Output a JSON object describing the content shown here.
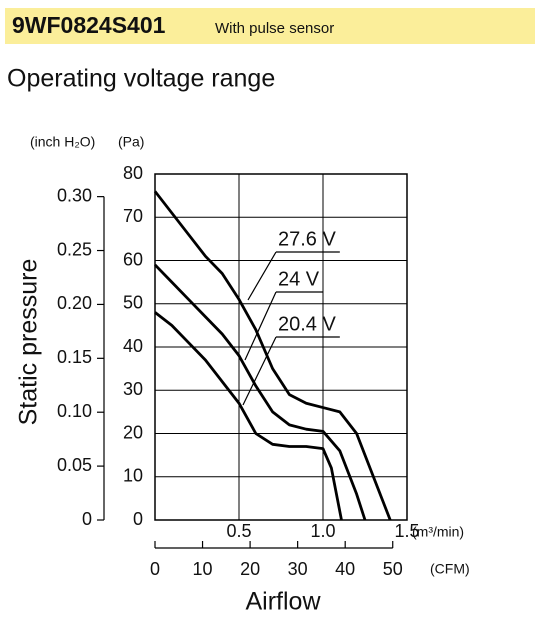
{
  "header": {
    "model": "9WF0824S401",
    "note": "With pulse sensor"
  },
  "chart_data": {
    "type": "line",
    "title": "Operating voltage range",
    "x_label": "Airflow",
    "y_label": "Static pressure",
    "x_unit": "(m³/min)",
    "x2_unit": "(CFM)",
    "y_unit": "(Pa)",
    "y2_unit": "(inch H₂O)",
    "xlim": [
      0,
      1.5
    ],
    "xticks": [
      0.5,
      {
        "value": 1.0,
        "label": "1.0"
      },
      1.5
    ],
    "x2lim": [
      0,
      53
    ],
    "x2ticks": [
      0,
      10,
      20,
      30,
      40,
      50
    ],
    "ylim": [
      0,
      80
    ],
    "yticks": [
      0,
      10,
      20,
      30,
      40,
      50,
      60,
      70,
      80
    ],
    "y2lim": [
      0,
      0.321
    ],
    "y2ticks": [
      0,
      0.05,
      {
        "value": 0.1,
        "label": "0.10"
      },
      0.15,
      {
        "value": 0.2,
        "label": "0.20"
      },
      0.25,
      {
        "value": 0.3,
        "label": "0.30"
      }
    ],
    "grid": true,
    "series": [
      {
        "name": "27.6 V",
        "color": "#000000",
        "x": [
          0,
          0.1,
          0.2,
          0.3,
          0.4,
          0.5,
          0.6,
          0.7,
          0.8,
          0.9,
          1.0,
          1.1,
          1.2,
          1.3,
          1.4
        ],
        "values": [
          76,
          71,
          66,
          61,
          57,
          51,
          44,
          35,
          29,
          27,
          26,
          25,
          20,
          10,
          0
        ]
      },
      {
        "name": "24 V",
        "color": "#000000",
        "x": [
          0,
          0.1,
          0.2,
          0.3,
          0.4,
          0.5,
          0.6,
          0.7,
          0.8,
          0.9,
          1.0,
          1.1,
          1.2,
          1.25
        ],
        "values": [
          59,
          55,
          51,
          47,
          43,
          38,
          31,
          25,
          22,
          21,
          20.5,
          16,
          6,
          0
        ]
      },
      {
        "name": "20.4 V",
        "color": "#000000",
        "x": [
          0,
          0.1,
          0.2,
          0.3,
          0.4,
          0.5,
          0.6,
          0.7,
          0.8,
          0.9,
          1.0,
          1.05,
          1.11
        ],
        "values": [
          48,
          45,
          41,
          37,
          32,
          27,
          20,
          17.5,
          17,
          17,
          16.5,
          12,
          0
        ]
      }
    ]
  }
}
